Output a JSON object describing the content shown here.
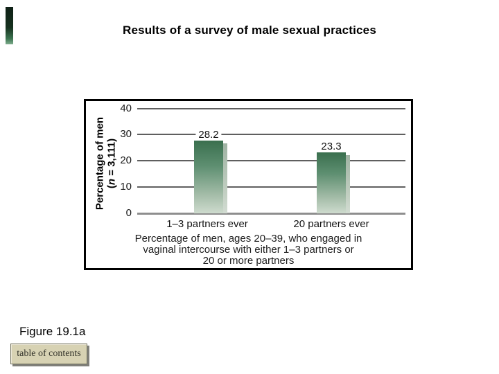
{
  "slide": {
    "title": "Results of a survey of male sexual practices",
    "figure_label": "Figure 19.1a",
    "toc_button_label": "table of contents",
    "accent_color": "#16311f",
    "toc_button_bg": "#d7d2b3"
  },
  "chart_data": {
    "type": "bar",
    "title": "Results of a survey of male sexual practices",
    "categories": [
      "1–3 partners ever",
      "20 partners ever"
    ],
    "values": [
      28.2,
      23.3
    ],
    "value_labels": [
      "28.2",
      "23.3"
    ],
    "ylabel_line1": "Percentage of men",
    "ylabel_line2_open": "(",
    "ylabel_line2_n": "n",
    "ylabel_line2_rest": " = 3,111)",
    "ylabel_line2_full": "(n = 3,111)",
    "yticks": [
      "40",
      "30",
      "20",
      "10",
      "0"
    ],
    "ylim": [
      0,
      40
    ],
    "grid": "horizontal",
    "legend": "none",
    "bar_gradient_top": "#3a6f4e",
    "bar_gradient_bottom": "#cedbce",
    "caption_line1": "Percentage of men, ages 20–39, who engaged in",
    "caption_line2": "vaginal intercourse with either 1–3 partners or",
    "caption_line3": "20 or more partners"
  }
}
